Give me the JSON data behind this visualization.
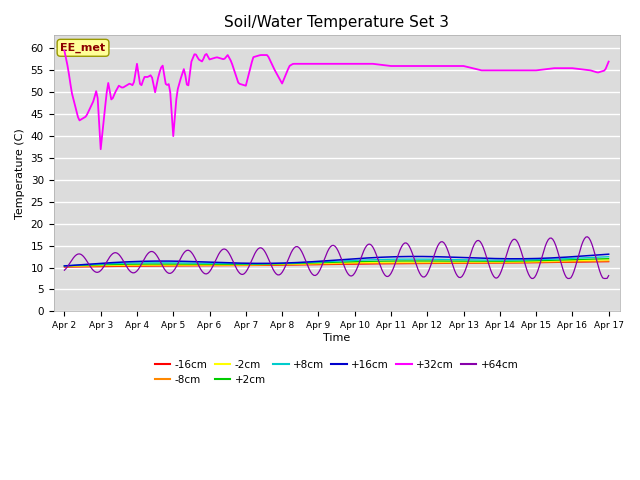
{
  "title": "Soil/Water Temperature Set 3",
  "xlabel": "Time",
  "ylabel": "Temperature (C)",
  "ylim": [
    0,
    63
  ],
  "yticks": [
    0,
    5,
    10,
    15,
    20,
    25,
    30,
    35,
    40,
    45,
    50,
    55,
    60
  ],
  "bg_color": "#dcdcdc",
  "fig_color": "#ffffff",
  "legend_labels": [
    "-16cm",
    "-8cm",
    "-2cm",
    "+2cm",
    "+8cm",
    "+16cm",
    "+32cm",
    "+64cm"
  ],
  "legend_colors": [
    "#ff0000",
    "#ff8800",
    "#ffff00",
    "#00cc00",
    "#00cccc",
    "#0000cc",
    "#ff00ff",
    "#8800aa"
  ],
  "EE_met_label": "EE_met",
  "n_points": 361,
  "ee_met_keypoints": [
    [
      0.0,
      59.5
    ],
    [
      0.1,
      55.5
    ],
    [
      0.2,
      50.0
    ],
    [
      0.4,
      43.5
    ],
    [
      0.6,
      44.5
    ],
    [
      0.8,
      48.0
    ],
    [
      0.9,
      51.0
    ],
    [
      1.0,
      37.0
    ],
    [
      1.1,
      45.0
    ],
    [
      1.2,
      52.5
    ],
    [
      1.3,
      48.0
    ],
    [
      1.4,
      50.0
    ],
    [
      1.5,
      51.5
    ],
    [
      1.6,
      51.0
    ],
    [
      1.7,
      51.5
    ],
    [
      1.8,
      52.0
    ],
    [
      1.9,
      51.5
    ],
    [
      2.0,
      56.5
    ],
    [
      2.1,
      51.0
    ],
    [
      2.2,
      53.5
    ],
    [
      2.3,
      53.5
    ],
    [
      2.4,
      54.0
    ],
    [
      2.5,
      50.0
    ],
    [
      2.6,
      54.0
    ],
    [
      2.7,
      56.5
    ],
    [
      2.8,
      51.5
    ],
    [
      2.9,
      52.0
    ],
    [
      3.0,
      40.0
    ],
    [
      3.1,
      50.0
    ],
    [
      3.2,
      53.0
    ],
    [
      3.3,
      55.5
    ],
    [
      3.4,
      50.5
    ],
    [
      3.5,
      57.0
    ],
    [
      3.6,
      59.0
    ],
    [
      3.7,
      57.5
    ],
    [
      3.8,
      57.0
    ],
    [
      3.9,
      59.0
    ],
    [
      4.0,
      57.5
    ],
    [
      4.2,
      58.0
    ],
    [
      4.4,
      57.5
    ],
    [
      4.5,
      58.5
    ],
    [
      4.6,
      57.0
    ],
    [
      4.8,
      52.0
    ],
    [
      5.0,
      51.5
    ],
    [
      5.2,
      58.0
    ],
    [
      5.4,
      58.5
    ],
    [
      5.6,
      58.5
    ],
    [
      5.8,
      55.0
    ],
    [
      6.0,
      52.0
    ],
    [
      6.2,
      56.0
    ],
    [
      6.3,
      56.5
    ],
    [
      6.5,
      56.5
    ],
    [
      7.0,
      56.5
    ],
    [
      7.5,
      56.5
    ],
    [
      8.0,
      56.5
    ],
    [
      8.5,
      56.5
    ],
    [
      9.0,
      56.0
    ],
    [
      10.0,
      56.0
    ],
    [
      11.0,
      56.0
    ],
    [
      11.5,
      55.0
    ],
    [
      12.0,
      55.0
    ],
    [
      12.5,
      55.0
    ],
    [
      13.0,
      55.0
    ],
    [
      13.5,
      55.5
    ],
    [
      14.0,
      55.5
    ],
    [
      14.5,
      55.0
    ],
    [
      14.7,
      54.5
    ],
    [
      14.9,
      55.0
    ],
    [
      15.0,
      57.0
    ]
  ]
}
